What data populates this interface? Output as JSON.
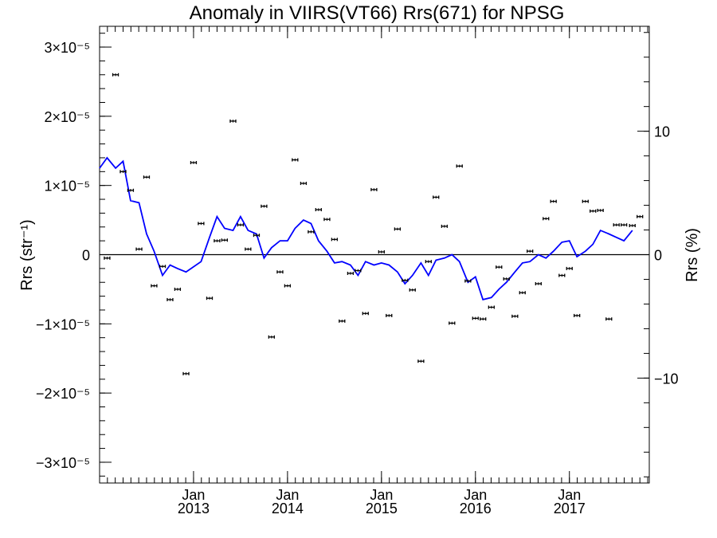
{
  "chart_data": {
    "type": "line",
    "title": "Anomaly in VIIRS(VT66) Rrs(671) for NPSG",
    "ylabel_left": "Rrs (str⁻¹)",
    "ylabel_right": "Rrs (%)",
    "xlabel": "",
    "xlim": [
      2012.0,
      2017.85
    ],
    "ylim": [
      -3.3e-05,
      3.3e-05
    ],
    "ylim_right": [
      -18.5,
      18.5
    ],
    "x_ticks": [
      {
        "value": 2013.0,
        "month": "Jan",
        "year": "2013"
      },
      {
        "value": 2014.0,
        "month": "Jan",
        "year": "2014"
      },
      {
        "value": 2015.0,
        "month": "Jan",
        "year": "2015"
      },
      {
        "value": 2016.0,
        "month": "Jan",
        "year": "2016"
      },
      {
        "value": 2017.0,
        "month": "Jan",
        "year": "2017"
      }
    ],
    "y_ticks_left": [
      {
        "value": 3e-05,
        "label": "3×10⁻⁵"
      },
      {
        "value": 2e-05,
        "label": "2×10⁻⁵"
      },
      {
        "value": 1e-05,
        "label": "1×10⁻⁵"
      },
      {
        "value": 0,
        "label": "0"
      },
      {
        "value": -1e-05,
        "label": "−1×10⁻⁵"
      },
      {
        "value": -2e-05,
        "label": "−2×10⁻⁵"
      },
      {
        "value": -3e-05,
        "label": "−3×10⁻⁵"
      }
    ],
    "y_ticks_right": [
      {
        "value": 10,
        "label": "10"
      },
      {
        "value": 0,
        "label": "0"
      },
      {
        "value": -10,
        "label": "−10"
      }
    ],
    "zero_line": true,
    "series": [
      {
        "name": "",
        "kind": "line",
        "color": "#0000ff",
        "points": [
          [
            2012.0,
            1.25e-05
          ],
          [
            2012.08,
            1.4e-05
          ],
          [
            2012.17,
            1.25e-05
          ],
          [
            2012.25,
            1.35e-05
          ],
          [
            2012.33,
            7.8e-06
          ],
          [
            2012.42,
            7.5e-06
          ],
          [
            2012.5,
            3e-06
          ],
          [
            2012.58,
            5e-07
          ],
          [
            2012.67,
            -3e-06
          ],
          [
            2012.75,
            -1.5e-06
          ],
          [
            2012.83,
            -2e-06
          ],
          [
            2012.92,
            -2.5e-06
          ],
          [
            2013.08,
            -1e-06
          ],
          [
            2013.17,
            2.5e-06
          ],
          [
            2013.25,
            5.5e-06
          ],
          [
            2013.33,
            3.8e-06
          ],
          [
            2013.42,
            3.5e-06
          ],
          [
            2013.5,
            5.5e-06
          ],
          [
            2013.58,
            3.5e-06
          ],
          [
            2013.67,
            3e-06
          ],
          [
            2013.75,
            -5e-07
          ],
          [
            2013.83,
            1e-06
          ],
          [
            2013.92,
            2e-06
          ],
          [
            2014.0,
            2e-06
          ],
          [
            2014.08,
            3.8e-06
          ],
          [
            2014.17,
            5e-06
          ],
          [
            2014.25,
            4.5e-06
          ],
          [
            2014.33,
            2e-06
          ],
          [
            2014.42,
            5e-07
          ],
          [
            2014.5,
            -1.2e-06
          ],
          [
            2014.58,
            -1e-06
          ],
          [
            2014.67,
            -1.5e-06
          ],
          [
            2014.75,
            -3e-06
          ],
          [
            2014.83,
            -1e-06
          ],
          [
            2014.92,
            -1.5e-06
          ],
          [
            2015.0,
            -1.2e-06
          ],
          [
            2015.08,
            -1.5e-06
          ],
          [
            2015.17,
            -2.5e-06
          ],
          [
            2015.25,
            -4.2e-06
          ],
          [
            2015.33,
            -3e-06
          ],
          [
            2015.42,
            -1.2e-06
          ],
          [
            2015.5,
            -3e-06
          ],
          [
            2015.58,
            -8e-07
          ],
          [
            2015.67,
            -5e-07
          ],
          [
            2015.75,
            0.0
          ],
          [
            2015.83,
            -1e-06
          ],
          [
            2015.92,
            -4e-06
          ],
          [
            2016.0,
            -3.2e-06
          ],
          [
            2016.08,
            -6.5e-06
          ],
          [
            2016.17,
            -6.2e-06
          ],
          [
            2016.25,
            -5e-06
          ],
          [
            2016.33,
            -4e-06
          ],
          [
            2016.42,
            -2.5e-06
          ],
          [
            2016.5,
            -1.2e-06
          ],
          [
            2016.58,
            -1e-06
          ],
          [
            2016.67,
            0.0
          ],
          [
            2016.75,
            -5e-07
          ],
          [
            2016.83,
            5e-07
          ],
          [
            2016.92,
            1.8e-06
          ],
          [
            2017.0,
            2e-06
          ],
          [
            2017.08,
            -3e-07
          ],
          [
            2017.17,
            5e-07
          ],
          [
            2017.25,
            1.5e-06
          ],
          [
            2017.33,
            3.5e-06
          ],
          [
            2017.42,
            3e-06
          ],
          [
            2017.5,
            2.5e-06
          ],
          [
            2017.58,
            2e-06
          ],
          [
            2017.67,
            3.5e-06
          ]
        ]
      },
      {
        "name": "",
        "kind": "errorbar",
        "color": "#000000",
        "error": 2e-07,
        "points": [
          [
            2012.08,
            -5e-07
          ],
          [
            2012.17,
            2.6e-05
          ],
          [
            2012.25,
            1.2e-05
          ],
          [
            2012.33,
            9.3e-06
          ],
          [
            2012.42,
            8e-07
          ],
          [
            2012.5,
            1.12e-05
          ],
          [
            2012.58,
            -4.5e-06
          ],
          [
            2012.67,
            -1.7e-06
          ],
          [
            2012.75,
            -6.5e-06
          ],
          [
            2012.83,
            -5e-06
          ],
          [
            2012.92,
            -1.72e-05
          ],
          [
            2013.0,
            1.33e-05
          ],
          [
            2013.08,
            4.5e-06
          ],
          [
            2013.17,
            -6.3e-06
          ],
          [
            2013.25,
            2e-06
          ],
          [
            2013.33,
            2.1e-06
          ],
          [
            2013.42,
            1.93e-05
          ],
          [
            2013.5,
            4.3e-06
          ],
          [
            2013.58,
            8e-07
          ],
          [
            2013.67,
            2.8e-06
          ],
          [
            2013.75,
            7e-06
          ],
          [
            2013.83,
            -1.19e-05
          ],
          [
            2013.92,
            -2.5e-06
          ],
          [
            2014.0,
            -4.5e-06
          ],
          [
            2014.08,
            1.37e-05
          ],
          [
            2014.17,
            1.03e-05
          ],
          [
            2014.25,
            3.3e-06
          ],
          [
            2014.33,
            6.5e-06
          ],
          [
            2014.42,
            5.1e-06
          ],
          [
            2014.5,
            2.2e-06
          ],
          [
            2014.58,
            -9.6e-06
          ],
          [
            2014.67,
            -2.7e-06
          ],
          [
            2014.75,
            -2.3e-06
          ],
          [
            2014.83,
            -8.5e-06
          ],
          [
            2014.92,
            9.4e-06
          ],
          [
            2015.0,
            4e-07
          ],
          [
            2015.08,
            -8.8e-06
          ],
          [
            2015.17,
            3.7e-06
          ],
          [
            2015.25,
            -3.7e-06
          ],
          [
            2015.33,
            -5.1e-06
          ],
          [
            2015.42,
            -1.54e-05
          ],
          [
            2015.5,
            -1e-06
          ],
          [
            2015.58,
            8.3e-06
          ],
          [
            2015.67,
            4.1e-06
          ],
          [
            2015.75,
            -9.9e-06
          ],
          [
            2015.83,
            1.28e-05
          ],
          [
            2015.92,
            -3.8e-06
          ],
          [
            2016.0,
            -9.2e-06
          ],
          [
            2016.08,
            -9.3e-06
          ],
          [
            2016.17,
            -7.6e-06
          ],
          [
            2016.25,
            -1.8e-06
          ],
          [
            2016.33,
            -3.5e-06
          ],
          [
            2016.42,
            -8.9e-06
          ],
          [
            2016.5,
            -5.5e-06
          ],
          [
            2016.58,
            5e-07
          ],
          [
            2016.67,
            -4.2e-06
          ],
          [
            2016.75,
            5.2e-06
          ],
          [
            2016.83,
            7.7e-06
          ],
          [
            2016.92,
            -3e-06
          ],
          [
            2017.0,
            -2e-06
          ],
          [
            2017.08,
            -8.8e-06
          ],
          [
            2017.17,
            7.7e-06
          ],
          [
            2017.25,
            6.3e-06
          ],
          [
            2017.33,
            6.4e-06
          ],
          [
            2017.42,
            -9.3e-06
          ],
          [
            2017.5,
            4.3e-06
          ],
          [
            2017.58,
            4.3e-06
          ],
          [
            2017.67,
            4.2e-06
          ],
          [
            2017.75,
            5.5e-06
          ]
        ]
      }
    ]
  }
}
